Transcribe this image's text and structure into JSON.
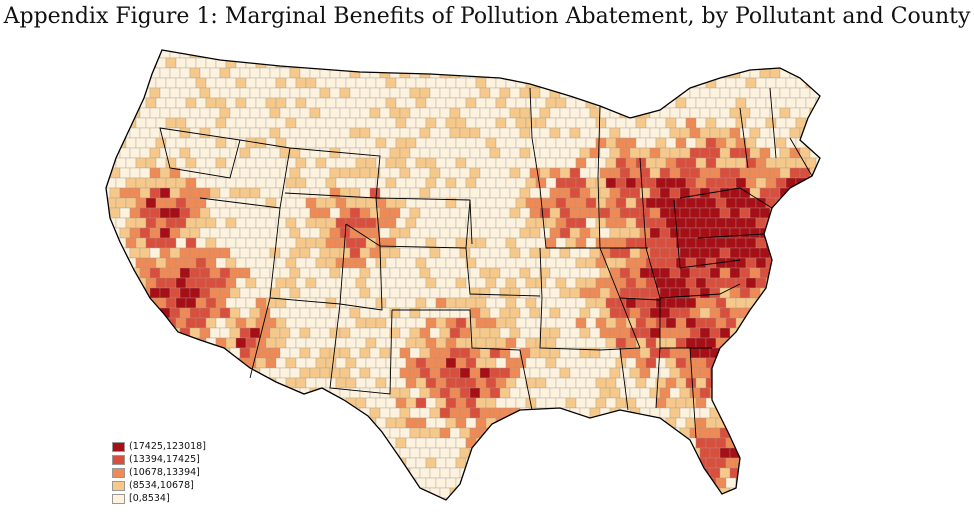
{
  "title": "Appendix Figure 1: Marginal Benefits of Pollution Abatement, by Pollutant and County",
  "legend": [
    {
      "label": "(17425,123018]",
      "color": "#a50f15"
    },
    {
      "label": "(13394,17425]",
      "color": "#d94f3d"
    },
    {
      "label": "(10678,13394]",
      "color": "#ee8a55"
    },
    {
      "label": "(8534,10678]",
      "color": "#f6c98a"
    },
    {
      "label": "[0,8534]",
      "color": "#fdf2de"
    }
  ],
  "colors": {
    "background": "#ffffff",
    "county_border": "#9a9a9a",
    "state_border": "#000000"
  }
}
